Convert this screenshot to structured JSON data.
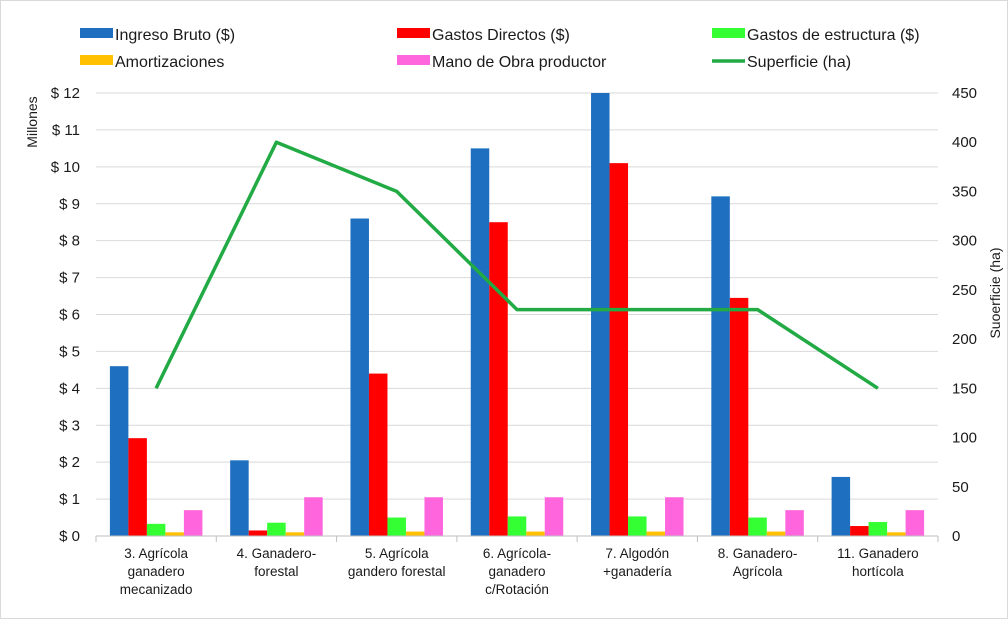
{
  "chart_data": {
    "type": "bar",
    "categories": [
      [
        "3. Agrícola",
        "ganadero",
        "mecanizado"
      ],
      [
        "4. Ganadero-",
        "forestal"
      ],
      [
        "5. Agrícola",
        "gandero forestal"
      ],
      [
        "6. Agrícola-",
        "ganadero",
        "c/Rotación"
      ],
      [
        "7. Algodón",
        "+ganadería"
      ],
      [
        "8. Ganadero-",
        "Agrícola"
      ],
      [
        "11. Ganadero",
        "hortícola"
      ]
    ],
    "series": [
      {
        "name": "Ingreso Bruto ($)",
        "type": "bar",
        "axis": "left",
        "color": "#1f6fc1",
        "values": [
          4.6,
          2.05,
          8.6,
          10.5,
          12.0,
          9.2,
          1.6
        ]
      },
      {
        "name": "Gastos Directos ($)",
        "type": "bar",
        "axis": "left",
        "color": "#ff0000",
        "values": [
          2.65,
          0.15,
          4.4,
          8.5,
          10.1,
          6.45,
          0.27
        ]
      },
      {
        "name": "Gastos de estructura ($)",
        "type": "bar",
        "axis": "left",
        "color": "#33ff33",
        "values": [
          0.33,
          0.36,
          0.5,
          0.53,
          0.53,
          0.5,
          0.38
        ]
      },
      {
        "name": "Amortizaciones",
        "type": "bar",
        "axis": "left",
        "color": "#ffc000",
        "values": [
          0.1,
          0.1,
          0.12,
          0.12,
          0.12,
          0.12,
          0.1
        ]
      },
      {
        "name": "Mano de Obra productor",
        "type": "bar",
        "axis": "left",
        "color": "#ff66dd",
        "values": [
          0.7,
          1.05,
          1.05,
          1.05,
          1.05,
          0.7,
          0.7
        ]
      },
      {
        "name": "Superficie (ha)",
        "type": "line",
        "axis": "right",
        "color": "#22aa44",
        "values": [
          150,
          400,
          350,
          230,
          230,
          230,
          150
        ]
      }
    ],
    "y_left": {
      "label": "Millones",
      "ylim": [
        0,
        12
      ],
      "ticks": [
        "$ 0",
        "$ 1",
        "$ 2",
        "$ 3",
        "$ 4",
        "$ 5",
        "$ 6",
        "$ 7",
        "$ 8",
        "$ 9",
        "$ 10",
        "$ 11",
        "$ 12"
      ]
    },
    "y_right": {
      "label": "Suoerficie (ha)",
      "ylim": [
        0,
        450
      ],
      "ticks": [
        "0",
        "50",
        "100",
        "150",
        "200",
        "250",
        "300",
        "350",
        "400",
        "450"
      ]
    },
    "grid": true,
    "legend_position": "top"
  }
}
